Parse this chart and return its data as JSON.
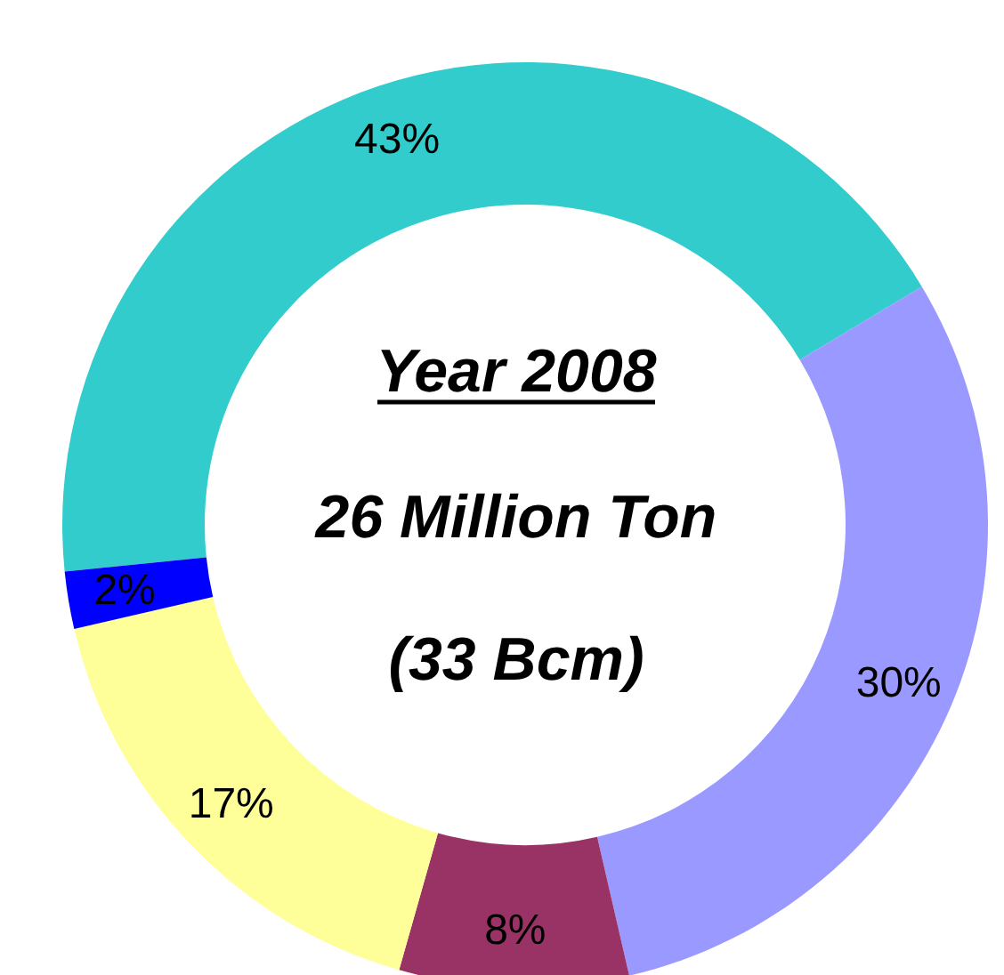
{
  "chart_data": {
    "type": "donut",
    "title": "Year 2008",
    "subtitle": "26 Million Ton",
    "annotations": [
      "(33 Bcm)"
    ],
    "categories": [
      null,
      null,
      null,
      null,
      null
    ],
    "values": [
      43,
      30,
      8,
      17,
      2
    ],
    "colors": [
      "#33cccc",
      "#9999ff",
      "#993366",
      "#ffff99",
      "#0000ff"
    ],
    "value_labels": [
      "43%",
      "30%",
      "8%",
      "17%",
      "2%"
    ],
    "legend": false
  }
}
